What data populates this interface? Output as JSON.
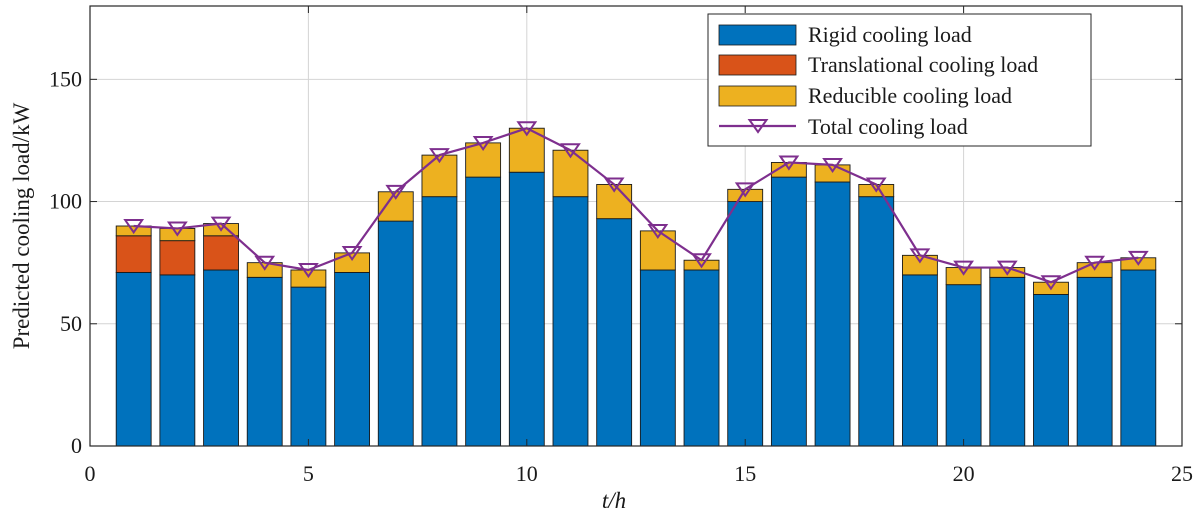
{
  "chart_data": {
    "type": "bar",
    "stacked": true,
    "xlabel_var": "t",
    "xlabel_unit": "/h",
    "ylabel": "Predicted cooling load/kW",
    "xlim": [
      0,
      25
    ],
    "ylim": [
      0,
      180
    ],
    "xticks": [
      0,
      5,
      10,
      15,
      20,
      25
    ],
    "yticks": [
      0,
      50,
      100,
      150
    ],
    "grid": true,
    "legend_position": "top-right",
    "x": [
      1,
      2,
      3,
      4,
      5,
      6,
      7,
      8,
      9,
      10,
      11,
      12,
      13,
      14,
      15,
      16,
      17,
      18,
      19,
      20,
      21,
      22,
      23,
      24
    ],
    "series": [
      {
        "name": "Rigid cooling load",
        "color": "#0072BD",
        "values": [
          71,
          70,
          72,
          69,
          65,
          71,
          92,
          102,
          110,
          112,
          102,
          93,
          72,
          72,
          100,
          110,
          108,
          102,
          70,
          66,
          69,
          62,
          69,
          72
        ]
      },
      {
        "name": "Translational cooling load",
        "color": "#D95319",
        "values": [
          15,
          14,
          14,
          0,
          0,
          0,
          0,
          0,
          0,
          0,
          0,
          0,
          0,
          0,
          0,
          0,
          0,
          0,
          0,
          0,
          0,
          0,
          0,
          0
        ]
      },
      {
        "name": "Reducible cooling load",
        "color": "#EDB120",
        "values": [
          4,
          5,
          5,
          6,
          7,
          8,
          12,
          17,
          14,
          18,
          19,
          14,
          16,
          4,
          5,
          6,
          7,
          5,
          8,
          7,
          4,
          5,
          6,
          5
        ]
      }
    ],
    "line": {
      "name": "Total cooling load",
      "color": "#7E2F8E",
      "marker": "down-triangle",
      "values": [
        90,
        89,
        91,
        75,
        72,
        79,
        104,
        119,
        124,
        130,
        121,
        107,
        88,
        76,
        105,
        116,
        115,
        107,
        78,
        73,
        73,
        67,
        75,
        77
      ]
    }
  }
}
